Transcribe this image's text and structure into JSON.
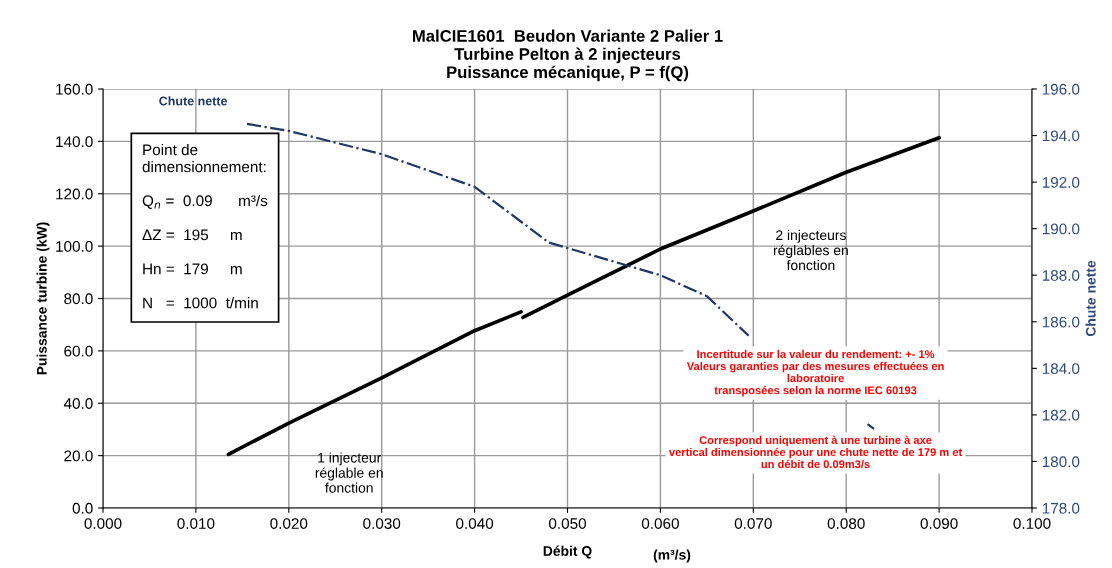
{
  "chart_data": {
    "type": "line",
    "title": "MalCIE1601  Beudon Variante 2 Palier 1\nTurbine Pelton à 2 injecteurs\nPuissance mécanique, P = f(Q)",
    "xlabel": "Débit Q",
    "ylabel": "Puissance turbine (kW)",
    "y2label": "Chute nette",
    "series": [
      {
        "color": "#000000",
        "line_style": "solid",
        "x": [
          0.0135,
          0.02,
          0.03,
          0.04,
          0.045
        ],
        "values": [
          20.5,
          32.4,
          49.7,
          67.7,
          74.9
        ]
      },
      {
        "color": "#000000",
        "line_style": "solid",
        "x": [
          0.0452,
          0.05,
          0.06,
          0.07,
          0.08,
          0.09
        ],
        "values": [
          72.8,
          81.3,
          98.9,
          113.4,
          128.2,
          141.4
        ]
      },
      {
        "name": "Chute nette",
        "axis": "y2",
        "color": "#203864",
        "line_style": "dashdot",
        "x": [
          0.0155,
          0.02,
          0.03,
          0.04,
          0.048,
          0.06,
          0.065,
          0.0695,
          0.075,
          0.0823,
          0.083
        ],
        "values": [
          194.5,
          194.2,
          193.2,
          191.8,
          189.4,
          188.0,
          187.1,
          185.4,
          null,
          181.6,
          181.4
        ]
      }
    ],
    "xlim": [
      0,
      0.1
    ],
    "xticks": [
      {
        "value": 0,
        "label": "0.000"
      },
      {
        "value": 0.01,
        "label": "0.010"
      },
      {
        "value": 0.02,
        "label": "0.020"
      },
      {
        "value": 0.03,
        "label": "0.030"
      },
      {
        "value": 0.04,
        "label": "0.040"
      },
      {
        "value": 0.05,
        "label": "0.050"
      },
      {
        "value": 0.06,
        "label": "0.060"
      },
      {
        "value": 0.07,
        "label": "0.070"
      },
      {
        "value": 0.08,
        "label": "0.080"
      },
      {
        "value": 0.09,
        "label": "0.090"
      },
      {
        "value": 0.1,
        "label": "0.100"
      }
    ],
    "ylim": [
      0,
      160
    ],
    "yticks": [
      {
        "value": 0,
        "label": "0.0"
      },
      {
        "value": 20,
        "label": "20.0"
      },
      {
        "value": 40,
        "label": "40.0"
      },
      {
        "value": 60,
        "label": "60.0"
      },
      {
        "value": 80,
        "label": "80.0"
      },
      {
        "value": 100,
        "label": "100.0"
      },
      {
        "value": 120,
        "label": "120.0"
      },
      {
        "value": 140,
        "label": "140.0"
      },
      {
        "value": 160,
        "label": "160.0"
      }
    ],
    "y2lim": [
      178,
      196
    ],
    "y2ticks": [
      {
        "value": 178,
        "label": "178.0"
      },
      {
        "value": 180,
        "label": "180.0"
      },
      {
        "value": 182,
        "label": "182.0"
      },
      {
        "value": 184,
        "label": "184.0"
      },
      {
        "value": 186,
        "label": "186.0"
      },
      {
        "value": 188,
        "label": "188.0"
      },
      {
        "value": 190,
        "label": "190.0"
      },
      {
        "value": 192,
        "label": "192.0"
      },
      {
        "value": 194,
        "label": "194.0"
      },
      {
        "value": 196,
        "label": "196.0"
      }
    ],
    "grid": true,
    "annotations": [
      "1 injecteur\nréglable en\nfonction",
      "2 injecteurs\nréglables en\nfonction",
      "Point de\ndimensionnement:\n\nQ$_{n}$ =  0.09      m³/s\n\nΔZ =  195     m\n\nHn =  179     m\n\nN   =  1000  t/min",
      "Incertitude sur la valeur du rendement: +- 1%\nValeurs garanties par des mesures effectuées en\nlaboratoire\ntransposées selon la norme IEC 60193",
      "Correspond uniquement à une turbine à axe\nvertical dimensionnée pour une chute nette de 179 m et\nun débit de 0.09m3/s",
      "(m³/s)"
    ]
  }
}
